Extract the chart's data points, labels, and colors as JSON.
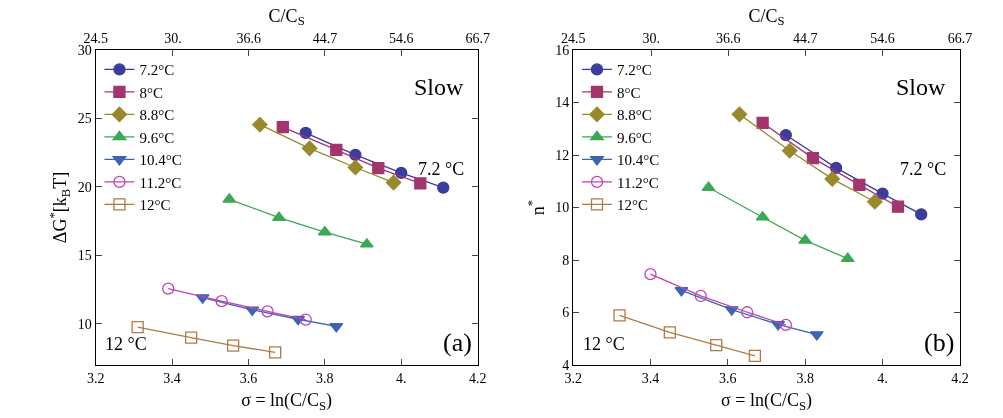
{
  "chart_data": [
    {
      "type": "line",
      "xlabel": "σ = ln(C/C$_{S}$)",
      "x2label": "C/C$_{S}$",
      "ylabel": "ΔG$^{*}$[k$_{B}$T]",
      "annotations": [
        "Slow",
        "7.2 °C",
        "12 °C",
        "(a)"
      ],
      "xlim": [
        3.2,
        4.2
      ],
      "xticks": [
        3.2,
        3.4,
        3.6,
        3.8,
        {
          "value": 4.0,
          "label": "4."
        },
        4.2
      ],
      "x2lim": [
        24.5,
        66.7
      ],
      "x2ticks": [
        24.5,
        {
          "value": 30,
          "label": "30."
        },
        36.6,
        44.7,
        54.6,
        66.7
      ],
      "ylim": [
        7,
        30
      ],
      "yticks": [
        10,
        15,
        20,
        25,
        30
      ],
      "legend": "top left",
      "line_style": "solid",
      "log": "x2",
      "series": [
        {
          "name": "7.2°C",
          "color": "#3c3c9c",
          "marker": "circle",
          "x": [
            3.75,
            3.88,
            4.0,
            4.11
          ],
          "values": [
            23.95,
            22.34,
            21.03,
            19.95
          ]
        },
        {
          "name": "8°C",
          "color": "#a2346e",
          "marker": "square",
          "x": [
            3.69,
            3.83,
            3.94,
            4.05
          ],
          "values": [
            24.37,
            22.71,
            21.37,
            20.26
          ]
        },
        {
          "name": "8.8°C",
          "color": "#988a2c",
          "marker": "diamond",
          "x": [
            3.63,
            3.76,
            3.88,
            3.98
          ],
          "values": [
            24.55,
            22.82,
            21.42,
            20.32
          ]
        },
        {
          "name": "9.6°C",
          "color": "#3aa855",
          "marker": "triangle",
          "x": [
            3.55,
            3.68,
            3.8,
            3.91
          ],
          "values": [
            19.1,
            17.76,
            16.71,
            15.82
          ]
        },
        {
          "name": "10.4°C",
          "color": "#3a66b0",
          "marker": "triangle-down",
          "x": [
            3.48,
            3.61,
            3.73,
            3.83
          ],
          "values": [
            11.92,
            11.03,
            10.34,
            9.82
          ]
        },
        {
          "name": "11.2°C",
          "color": "#c043b8",
          "marker": "circle-open",
          "x": [
            3.39,
            3.53,
            3.65,
            3.75
          ],
          "values": [
            12.58,
            11.66,
            10.92,
            10.32
          ]
        },
        {
          "name": "12°C",
          "color": "#b07a45",
          "marker": "square-open",
          "x": [
            3.31,
            3.45,
            3.56,
            3.67
          ],
          "values": [
            9.76,
            9.0,
            8.42,
            7.92
          ]
        }
      ]
    },
    {
      "type": "line",
      "xlabel": "σ = ln(C/C$_{S}$)",
      "x2label": "C/C$_{S}$",
      "ylabel": "n$^{*}$",
      "annotations": [
        "Slow",
        "7.2 °C",
        "12 °C",
        "(b)"
      ],
      "xlim": [
        3.2,
        4.2
      ],
      "xticks": [
        3.2,
        3.4,
        3.6,
        3.8,
        {
          "value": 4.0,
          "label": "4."
        },
        4.2
      ],
      "x2lim": [
        24.5,
        66.7
      ],
      "x2ticks": [
        24.5,
        {
          "value": 30,
          "label": "30."
        },
        36.6,
        44.7,
        54.6,
        66.7
      ],
      "ylim": [
        4,
        16
      ],
      "yticks": [
        4,
        6,
        8,
        10,
        12,
        14,
        16
      ],
      "legend": "top left",
      "line_style": "solid",
      "log": "x2",
      "series": [
        {
          "name": "7.2°C",
          "color": "#3c3c9c",
          "marker": "circle",
          "x": [
            3.75,
            3.88,
            4.0,
            4.1
          ],
          "values": [
            12.76,
            11.51,
            10.53,
            9.74
          ]
        },
        {
          "name": "8°C",
          "color": "#a2346e",
          "marker": "square",
          "x": [
            3.69,
            3.82,
            3.94,
            4.04
          ],
          "values": [
            13.22,
            11.88,
            10.86,
            10.03
          ]
        },
        {
          "name": "8.8°C",
          "color": "#988a2c",
          "marker": "diamond",
          "x": [
            3.63,
            3.76,
            3.87,
            3.98
          ],
          "values": [
            13.55,
            12.16,
            11.09,
            10.22
          ]
        },
        {
          "name": "9.6°C",
          "color": "#3aa855",
          "marker": "triangle",
          "x": [
            3.55,
            3.69,
            3.8,
            3.91
          ],
          "values": [
            10.76,
            9.63,
            8.75,
            8.05
          ]
        },
        {
          "name": "10.4°C",
          "color": "#3a66b0",
          "marker": "triangle-down",
          "x": [
            3.48,
            3.61,
            3.73,
            3.83
          ],
          "values": [
            6.84,
            6.11,
            5.55,
            5.16
          ]
        },
        {
          "name": "11.2°C",
          "color": "#c043b8",
          "marker": "circle-open",
          "x": [
            3.4,
            3.53,
            3.65,
            3.75
          ],
          "values": [
            7.46,
            6.63,
            6.01,
            5.53
          ]
        },
        {
          "name": "12°C",
          "color": "#b07a45",
          "marker": "square-open",
          "x": [
            3.32,
            3.45,
            3.57,
            3.67
          ],
          "values": [
            5.89,
            5.24,
            4.76,
            4.35
          ]
        }
      ]
    }
  ]
}
